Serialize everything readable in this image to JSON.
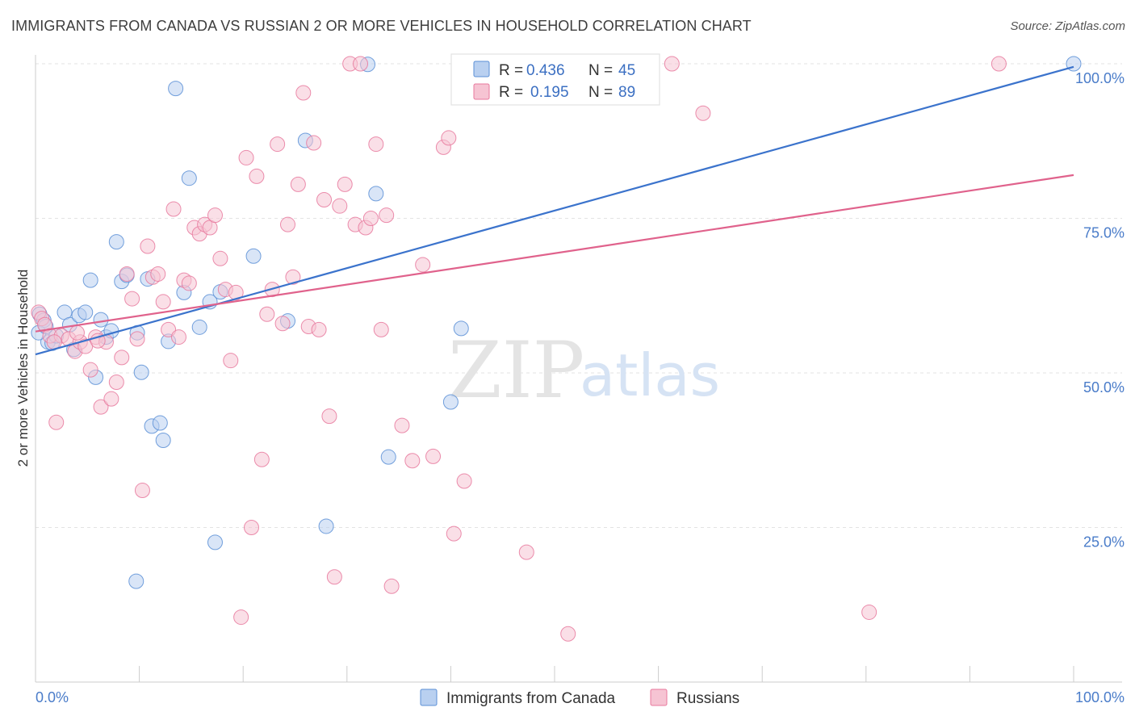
{
  "header": {
    "title": "IMMIGRANTS FROM CANADA VS RUSSIAN 2 OR MORE VEHICLES IN HOUSEHOLD CORRELATION CHART",
    "source": "Source: ZipAtlas.com"
  },
  "legend": {
    "r_label": "R =",
    "n_label": "N =",
    "items": [
      {
        "r": "0.436",
        "n": "45",
        "color": "#5b8fd6",
        "fill": "#b9d0f0"
      },
      {
        "r": "0.195",
        "n": "89",
        "color": "#e8799e",
        "fill": "#f6c4d3"
      }
    ]
  },
  "bottom_legend": [
    "Immigrants from Canada",
    "Russians"
  ],
  "watermark": {
    "zip": "ZIP",
    "atlas": "atlas"
  },
  "chart_data": {
    "type": "scatter",
    "xlabel": "",
    "ylabel": "2 or more Vehicles in Household",
    "xlim": [
      0,
      100
    ],
    "ylim": [
      0,
      100
    ],
    "x_tick_labels": [
      "0.0%",
      "100.0%"
    ],
    "y_ticks": [
      25,
      50,
      75,
      100
    ],
    "y_tick_labels": [
      "25.0%",
      "50.0%",
      "75.0%",
      "100.0%"
    ],
    "grid": true,
    "series": [
      {
        "name": "Immigrants from Canada",
        "color": "#5b8fd6",
        "fill": "#b9d0f0",
        "trend": [
          [
            0,
            53.0
          ],
          [
            100,
            99.5
          ]
        ],
        "points": [
          [
            0.4,
            59.5
          ],
          [
            0.8,
            58.5
          ],
          [
            1.2,
            55.0
          ],
          [
            1.6,
            54.8
          ],
          [
            2.8,
            59.8
          ],
          [
            3.3,
            57.8
          ],
          [
            3.7,
            53.8
          ],
          [
            4.2,
            59.3
          ],
          [
            4.8,
            59.8
          ],
          [
            5.3,
            65.0
          ],
          [
            5.8,
            49.3
          ],
          [
            6.3,
            58.6
          ],
          [
            6.8,
            55.8
          ],
          [
            7.3,
            56.8
          ],
          [
            7.8,
            71.2
          ],
          [
            8.3,
            64.8
          ],
          [
            8.8,
            65.8
          ],
          [
            9.7,
            16.3
          ],
          [
            9.8,
            56.5
          ],
          [
            10.2,
            50.1
          ],
          [
            10.8,
            65.2
          ],
          [
            11.2,
            41.4
          ],
          [
            12.0,
            41.9
          ],
          [
            12.3,
            39.1
          ],
          [
            12.8,
            55.1
          ],
          [
            13.5,
            96.0
          ],
          [
            14.3,
            63.0
          ],
          [
            14.8,
            81.5
          ],
          [
            15.8,
            57.4
          ],
          [
            16.8,
            61.5
          ],
          [
            17.3,
            22.6
          ],
          [
            17.8,
            63.1
          ],
          [
            21.0,
            68.9
          ],
          [
            24.3,
            58.4
          ],
          [
            26.0,
            87.6
          ],
          [
            28.0,
            25.2
          ],
          [
            32.0,
            99.9
          ],
          [
            32.8,
            79.0
          ],
          [
            34.0,
            36.4
          ],
          [
            40.0,
            45.3
          ],
          [
            41.0,
            57.2
          ],
          [
            100.0,
            100.0
          ],
          [
            0.3,
            56.5
          ],
          [
            2.0,
            56.0
          ],
          [
            1.0,
            57.5
          ]
        ]
      },
      {
        "name": "Russians",
        "color": "#e8799e",
        "fill": "#f6c4d3",
        "trend": [
          [
            0,
            56.7
          ],
          [
            100,
            82.0
          ]
        ],
        "points": [
          [
            0.3,
            59.8
          ],
          [
            0.6,
            58.8
          ],
          [
            0.9,
            57.8
          ],
          [
            1.4,
            56.0
          ],
          [
            2.0,
            42.0
          ],
          [
            2.5,
            56.0
          ],
          [
            3.2,
            55.5
          ],
          [
            3.8,
            53.5
          ],
          [
            4.3,
            55.0
          ],
          [
            4.8,
            54.3
          ],
          [
            5.3,
            50.5
          ],
          [
            5.8,
            55.8
          ],
          [
            6.3,
            44.5
          ],
          [
            6.8,
            55.0
          ],
          [
            7.3,
            45.8
          ],
          [
            7.8,
            48.5
          ],
          [
            8.3,
            52.5
          ],
          [
            8.8,
            66.0
          ],
          [
            9.3,
            62.0
          ],
          [
            9.8,
            55.5
          ],
          [
            10.3,
            31.0
          ],
          [
            10.8,
            70.5
          ],
          [
            11.3,
            65.5
          ],
          [
            11.8,
            66.0
          ],
          [
            12.3,
            61.5
          ],
          [
            12.8,
            57.0
          ],
          [
            13.3,
            76.5
          ],
          [
            13.8,
            55.8
          ],
          [
            14.3,
            65.0
          ],
          [
            14.8,
            64.5
          ],
          [
            15.3,
            73.5
          ],
          [
            15.8,
            72.5
          ],
          [
            16.3,
            74.0
          ],
          [
            16.8,
            73.5
          ],
          [
            17.3,
            75.5
          ],
          [
            17.8,
            68.5
          ],
          [
            18.3,
            63.5
          ],
          [
            18.8,
            52.0
          ],
          [
            19.3,
            63.0
          ],
          [
            19.8,
            10.5
          ],
          [
            20.3,
            84.8
          ],
          [
            20.8,
            25.0
          ],
          [
            21.3,
            81.8
          ],
          [
            21.8,
            36.0
          ],
          [
            22.3,
            59.5
          ],
          [
            22.8,
            63.5
          ],
          [
            23.3,
            87.0
          ],
          [
            23.8,
            58.0
          ],
          [
            24.3,
            74.0
          ],
          [
            24.8,
            65.5
          ],
          [
            25.3,
            80.5
          ],
          [
            25.8,
            95.3
          ],
          [
            26.3,
            57.5
          ],
          [
            26.8,
            87.2
          ],
          [
            27.3,
            57.0
          ],
          [
            27.8,
            78.0
          ],
          [
            28.3,
            43.0
          ],
          [
            28.8,
            17.0
          ],
          [
            29.3,
            77.0
          ],
          [
            29.8,
            80.5
          ],
          [
            30.3,
            100.0
          ],
          [
            30.8,
            74.0
          ],
          [
            31.3,
            100.0
          ],
          [
            31.8,
            73.5
          ],
          [
            32.3,
            75.0
          ],
          [
            32.8,
            87.0
          ],
          [
            33.3,
            57.0
          ],
          [
            33.8,
            75.5
          ],
          [
            34.3,
            15.5
          ],
          [
            35.3,
            41.5
          ],
          [
            36.3,
            35.8
          ],
          [
            37.3,
            67.5
          ],
          [
            38.3,
            36.5
          ],
          [
            39.3,
            86.5
          ],
          [
            39.8,
            88.0
          ],
          [
            40.3,
            24.0
          ],
          [
            41.3,
            32.5
          ],
          [
            47.3,
            21.0
          ],
          [
            48.3,
            100.0
          ],
          [
            49.8,
            100.0
          ],
          [
            51.3,
            7.8
          ],
          [
            52.0,
            100.0
          ],
          [
            61.3,
            100.0
          ],
          [
            64.3,
            92.0
          ],
          [
            80.3,
            11.3
          ],
          [
            92.8,
            100.0
          ],
          [
            1.8,
            55.0
          ],
          [
            4.0,
            56.5
          ],
          [
            6.0,
            55.2
          ]
        ]
      }
    ]
  }
}
